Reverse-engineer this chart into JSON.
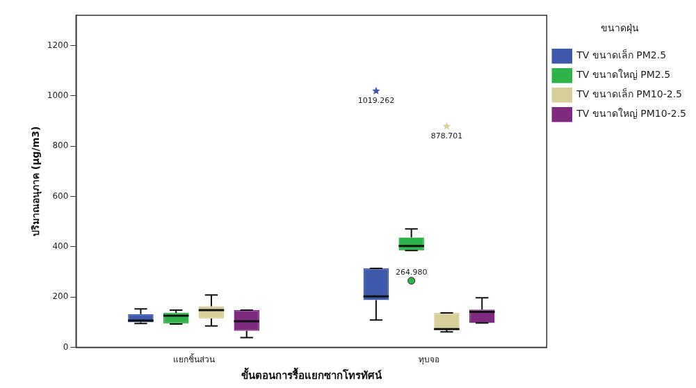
{
  "chart_data": {
    "type": "box",
    "xlabel": "ขั้นตอนการรื้อแยกซากโทรทัศน์",
    "ylabel": "ปริมาณอนุภาค (µg/m3)",
    "legend_title": "ขนาดฝุ่น",
    "categories": [
      "แยกชิ้นส่วน",
      "ทุบจอ"
    ],
    "series": [
      {
        "name": "TV ขนาดเล็ก PM2.5",
        "color": "#3e58ac",
        "boxes": [
          {
            "low": 95,
            "q1": 100,
            "median": 107,
            "q3": 132,
            "high": 153
          },
          {
            "low": 109,
            "q1": 188,
            "median": 203,
            "q3": 314,
            "high": 314,
            "outliers": [
              1019.262
            ]
          }
        ]
      },
      {
        "name": "TV ขนาดใหญ่ PM2.5",
        "color": "#2fb24a",
        "boxes": [
          {
            "low": 93,
            "q1": 95,
            "median": 126,
            "q3": 137,
            "high": 148
          },
          {
            "low": 385,
            "q1": 385,
            "median": 403,
            "q3": 437,
            "high": 471,
            "outliers": [
              264.98
            ]
          }
        ]
      },
      {
        "name": "TV ขนาดเล็ก PM10-2.5",
        "color": "#d6cf9a",
        "boxes": [
          {
            "low": 85,
            "q1": 115,
            "median": 148,
            "q3": 163,
            "high": 208
          },
          {
            "low": 62,
            "q1": 70,
            "median": 73,
            "q3": 137,
            "high": 137,
            "outliers": [
              878.701
            ]
          }
        ]
      },
      {
        "name": "TV ขนาดใหญ่ PM10-2.5",
        "color": "#7d2a7f",
        "boxes": [
          {
            "low": 39,
            "q1": 66,
            "median": 104,
            "q3": 148,
            "high": 148
          },
          {
            "low": 97,
            "q1": 97,
            "median": 141,
            "q3": 150,
            "high": 197
          }
        ]
      }
    ],
    "annotations": [
      "1019.262",
      "264.980",
      "878.701"
    ],
    "ylim": [
      0,
      1320
    ],
    "yticks": [
      0,
      200,
      400,
      600,
      800,
      1000,
      1200
    ],
    "grid": false,
    "legend": "right"
  }
}
